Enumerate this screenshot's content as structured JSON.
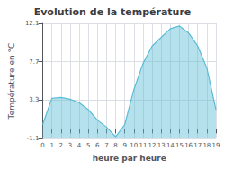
{
  "chart_data": {
    "type": "area",
    "title": "Evolution de la température",
    "xlabel": "heure par heure",
    "ylabel": "Température en °C",
    "x": [
      0,
      1,
      2,
      3,
      4,
      5,
      6,
      7,
      8,
      9,
      10,
      11,
      12,
      13,
      14,
      15,
      16,
      17,
      18,
      19
    ],
    "values": [
      0.5,
      3.5,
      3.6,
      3.4,
      3.0,
      2.2,
      1.0,
      0.2,
      -0.9,
      0.5,
      4.5,
      7.5,
      9.5,
      10.5,
      11.5,
      11.8,
      11.0,
      9.5,
      7.0,
      2.2
    ],
    "color": "#5bbcd6",
    "xlim": [
      0,
      19
    ],
    "xticks": [
      0,
      1,
      2,
      3,
      4,
      5,
      6,
      7,
      8,
      9,
      10,
      11,
      12,
      13,
      14,
      15,
      16,
      17,
      18,
      19
    ],
    "ylim": [
      -1.1,
      12.1
    ],
    "yticks": [
      -1.1,
      3.3,
      7.7,
      12.1
    ],
    "grid": true
  }
}
